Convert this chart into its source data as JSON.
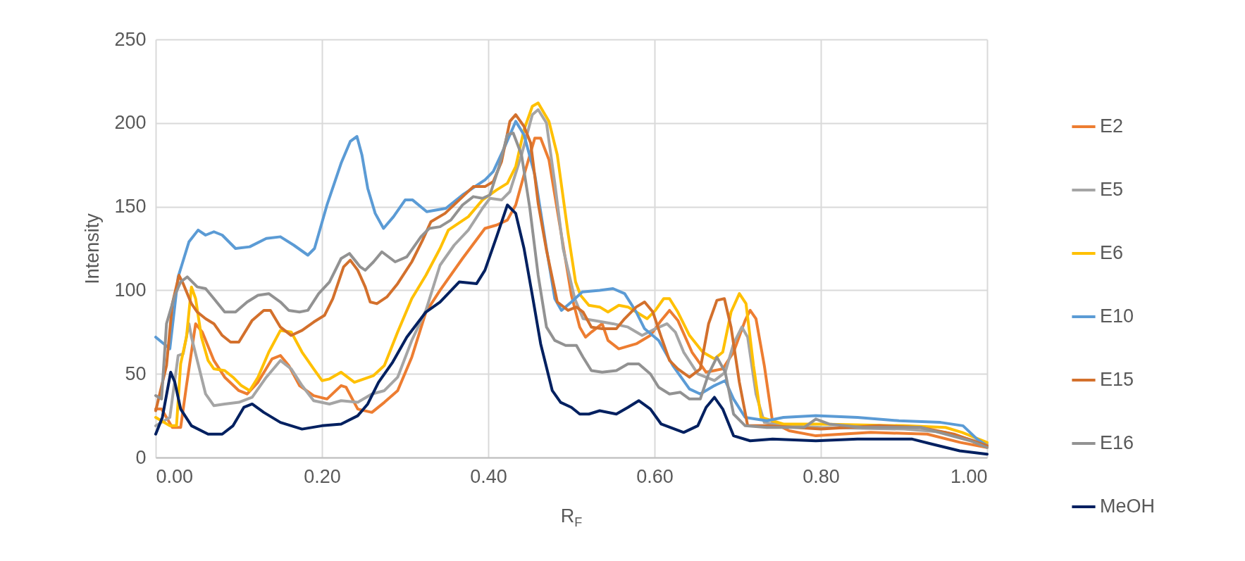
{
  "chart_data": {
    "type": "line",
    "xlabel": "R$_{F}$",
    "ylabel": "Intensity",
    "xlim": [
      0,
      1
    ],
    "ylim": [
      0,
      250
    ],
    "xticks": [
      {
        "value": 0,
        "label": "0.00"
      },
      {
        "value": 0.2,
        "label": "0.20"
      },
      {
        "value": 0.4,
        "label": "0.40"
      },
      {
        "value": 0.6,
        "label": "0.60"
      },
      {
        "value": 0.8,
        "label": "0.80"
      },
      {
        "value": 1,
        "label": "1.00"
      }
    ],
    "yticks": [
      0,
      50,
      100,
      150,
      200,
      250
    ],
    "grid": true,
    "legend": "right",
    "line_style": "solid",
    "marker": "none",
    "series": [
      {
        "name": "E2",
        "color": "#ed7d31",
        "x": [
          0,
          0.007,
          0.02,
          0.03,
          0.037,
          0.048,
          0.056,
          0.07,
          0.083,
          0.1,
          0.11,
          0.123,
          0.14,
          0.15,
          0.16,
          0.173,
          0.19,
          0.206,
          0.223,
          0.229,
          0.243,
          0.26,
          0.275,
          0.291,
          0.308,
          0.325,
          0.342,
          0.369,
          0.396,
          0.41,
          0.423,
          0.433,
          0.443,
          0.456,
          0.463,
          0.473,
          0.486,
          0.5,
          0.51,
          0.517,
          0.524,
          0.537,
          0.544,
          0.557,
          0.578,
          0.595,
          0.608,
          0.618,
          0.628,
          0.645,
          0.662,
          0.682,
          0.695,
          0.709,
          0.715,
          0.722,
          0.732,
          0.742,
          0.762,
          0.794,
          0.86,
          0.928,
          0.968,
          1
        ],
        "values": [
          29,
          29,
          18,
          18,
          43,
          80,
          75,
          58,
          48,
          40,
          38,
          45,
          59,
          61,
          55,
          43,
          37,
          35,
          43,
          42,
          29,
          27,
          33,
          40,
          60,
          87,
          100,
          119,
          137,
          139,
          142,
          151,
          169,
          191,
          191,
          178,
          139,
          97,
          78,
          72,
          75,
          80,
          70,
          65,
          68,
          73,
          82,
          88,
          82,
          63,
          51,
          53,
          63,
          82,
          88,
          83,
          55,
          21,
          16,
          13,
          15,
          14,
          9,
          6
        ]
      },
      {
        "name": "E5",
        "color": "#a5a5a5",
        "x": [
          0,
          0.017,
          0.027,
          0.033,
          0.04,
          0.043,
          0.05,
          0.06,
          0.07,
          0.083,
          0.1,
          0.116,
          0.133,
          0.15,
          0.163,
          0.176,
          0.19,
          0.209,
          0.223,
          0.243,
          0.26,
          0.275,
          0.291,
          0.308,
          0.325,
          0.342,
          0.359,
          0.376,
          0.393,
          0.402,
          0.416,
          0.426,
          0.44,
          0.453,
          0.46,
          0.47,
          0.48,
          0.49,
          0.504,
          0.514,
          0.527,
          0.55,
          0.568,
          0.585,
          0.601,
          0.615,
          0.625,
          0.635,
          0.652,
          0.672,
          0.685,
          0.695,
          0.705,
          0.712,
          0.722,
          0.732,
          0.755,
          0.8,
          0.9,
          0.95,
          0.97,
          1
        ],
        "values": [
          19,
          24,
          61,
          62,
          80,
          72,
          58,
          38,
          31,
          32,
          33,
          36,
          48,
          58,
          53,
          43,
          34,
          32,
          34,
          33,
          38,
          40,
          48,
          70,
          88,
          115,
          127,
          136,
          149,
          155,
          154,
          159,
          181,
          205,
          208,
          200,
          164,
          125,
          95,
          83,
          82,
          80,
          78,
          73,
          77,
          80,
          75,
          63,
          50,
          46,
          51,
          68,
          78,
          72,
          38,
          21,
          19,
          18,
          17,
          15,
          12,
          8
        ]
      },
      {
        "name": "E6",
        "color": "#ffc000",
        "x": [
          0,
          0.017,
          0.025,
          0.03,
          0.037,
          0.043,
          0.048,
          0.055,
          0.063,
          0.07,
          0.083,
          0.093,
          0.103,
          0.113,
          0.123,
          0.136,
          0.15,
          0.163,
          0.176,
          0.19,
          0.2,
          0.209,
          0.223,
          0.239,
          0.262,
          0.275,
          0.291,
          0.308,
          0.325,
          0.342,
          0.352,
          0.376,
          0.393,
          0.41,
          0.423,
          0.433,
          0.443,
          0.453,
          0.46,
          0.473,
          0.483,
          0.496,
          0.505,
          0.511,
          0.521,
          0.534,
          0.544,
          0.557,
          0.568,
          0.578,
          0.591,
          0.601,
          0.611,
          0.618,
          0.628,
          0.642,
          0.658,
          0.672,
          0.682,
          0.692,
          0.702,
          0.71,
          0.719,
          0.728,
          0.755,
          0.8,
          0.9,
          0.95,
          0.97,
          1
        ],
        "values": [
          24,
          19,
          19,
          56,
          72,
          102,
          95,
          72,
          58,
          53,
          52,
          48,
          43,
          40,
          48,
          63,
          76,
          75,
          63,
          53,
          46,
          47,
          51,
          45,
          49,
          55,
          75,
          95,
          109,
          125,
          136,
          144,
          154,
          160,
          164,
          174,
          196,
          210,
          212,
          201,
          181,
          134,
          105,
          97,
          91,
          90,
          87,
          91,
          90,
          87,
          83,
          88,
          95,
          95,
          87,
          73,
          63,
          59,
          63,
          87,
          98,
          92,
          55,
          24,
          20,
          20,
          19,
          18,
          15,
          9
        ]
      },
      {
        "name": "E10",
        "color": "#5b9bd5",
        "x": [
          0,
          0.017,
          0.027,
          0.04,
          0.051,
          0.06,
          0.07,
          0.08,
          0.096,
          0.113,
          0.133,
          0.15,
          0.166,
          0.183,
          0.191,
          0.206,
          0.223,
          0.234,
          0.242,
          0.248,
          0.255,
          0.264,
          0.274,
          0.286,
          0.3,
          0.309,
          0.326,
          0.349,
          0.369,
          0.396,
          0.406,
          0.42,
          0.433,
          0.443,
          0.456,
          0.47,
          0.48,
          0.488,
          0.5,
          0.513,
          0.534,
          0.55,
          0.564,
          0.578,
          0.588,
          0.605,
          0.622,
          0.642,
          0.655,
          0.672,
          0.685,
          0.695,
          0.709,
          0.735,
          0.755,
          0.794,
          0.844,
          0.894,
          0.944,
          0.971,
          0.988,
          1
        ],
        "values": [
          72,
          65,
          108,
          129,
          136,
          133,
          135,
          133,
          125,
          126,
          131,
          132,
          127,
          121,
          125,
          151,
          176,
          189,
          192,
          181,
          161,
          146,
          137,
          144,
          154,
          154,
          147,
          149,
          157,
          166,
          171,
          186,
          201,
          193,
          169,
          125,
          95,
          88,
          93,
          99,
          100,
          101,
          98,
          87,
          77,
          70,
          55,
          41,
          38,
          43,
          46,
          35,
          24,
          22,
          24,
          25,
          24,
          22,
          21,
          19,
          11,
          7
        ]
      },
      {
        "name": "E15",
        "color": "#d3702c",
        "x": [
          0,
          0.013,
          0.02,
          0.028,
          0.033,
          0.043,
          0.05,
          0.06,
          0.07,
          0.08,
          0.09,
          0.1,
          0.116,
          0.13,
          0.138,
          0.15,
          0.163,
          0.176,
          0.19,
          0.203,
          0.213,
          0.226,
          0.234,
          0.243,
          0.252,
          0.258,
          0.266,
          0.278,
          0.291,
          0.308,
          0.321,
          0.331,
          0.348,
          0.365,
          0.382,
          0.396,
          0.406,
          0.416,
          0.426,
          0.433,
          0.443,
          0.451,
          0.46,
          0.47,
          0.483,
          0.496,
          0.506,
          0.514,
          0.524,
          0.537,
          0.554,
          0.564,
          0.578,
          0.588,
          0.598,
          0.608,
          0.618,
          0.628,
          0.642,
          0.655,
          0.665,
          0.675,
          0.684,
          0.692,
          0.702,
          0.712,
          0.735,
          0.8,
          0.87,
          0.92,
          0.96,
          1
        ],
        "values": [
          28,
          55,
          92,
          109,
          104,
          92,
          87,
          83,
          80,
          73,
          69,
          69,
          82,
          88,
          88,
          78,
          73,
          76,
          81,
          85,
          95,
          114,
          118,
          112,
          102,
          93,
          92,
          96,
          104,
          117,
          130,
          141,
          146,
          154,
          162,
          162,
          165,
          177,
          201,
          205,
          198,
          188,
          152,
          124,
          93,
          88,
          90,
          87,
          78,
          77,
          77,
          83,
          90,
          93,
          87,
          72,
          58,
          53,
          48,
          53,
          80,
          94,
          95,
          78,
          45,
          19,
          19,
          17,
          19,
          18,
          14,
          7
        ]
      },
      {
        "name": "E16",
        "color": "#929292",
        "x": [
          0,
          0.007,
          0.013,
          0.023,
          0.03,
          0.038,
          0.05,
          0.06,
          0.07,
          0.083,
          0.096,
          0.11,
          0.123,
          0.136,
          0.15,
          0.16,
          0.173,
          0.183,
          0.196,
          0.209,
          0.223,
          0.233,
          0.246,
          0.252,
          0.262,
          0.272,
          0.288,
          0.302,
          0.319,
          0.329,
          0.342,
          0.355,
          0.369,
          0.382,
          0.393,
          0.402,
          0.413,
          0.423,
          0.43,
          0.44,
          0.45,
          0.46,
          0.47,
          0.48,
          0.493,
          0.506,
          0.514,
          0.524,
          0.537,
          0.554,
          0.568,
          0.581,
          0.595,
          0.605,
          0.618,
          0.631,
          0.642,
          0.655,
          0.665,
          0.675,
          0.685,
          0.695,
          0.709,
          0.735,
          0.78,
          0.794,
          0.81,
          0.85,
          0.92,
          0.95,
          0.98,
          1
        ],
        "values": [
          37,
          35,
          80,
          97,
          105,
          108,
          102,
          101,
          95,
          87,
          87,
          93,
          97,
          98,
          93,
          88,
          87,
          88,
          98,
          105,
          119,
          122,
          114,
          112,
          117,
          123,
          117,
          120,
          132,
          137,
          138,
          142,
          151,
          156,
          155,
          157,
          174,
          193,
          194,
          181,
          149,
          109,
          78,
          70,
          67,
          67,
          60,
          52,
          51,
          52,
          56,
          56,
          50,
          42,
          38,
          39,
          35,
          35,
          50,
          60,
          51,
          26,
          19,
          18,
          18,
          23,
          20,
          18,
          18,
          14,
          10,
          6
        ]
      },
      {
        "name": "MeOH",
        "color": "#002060",
        "x": [
          0,
          0.008,
          0.018,
          0.023,
          0.03,
          0.043,
          0.063,
          0.08,
          0.093,
          0.106,
          0.116,
          0.13,
          0.15,
          0.176,
          0.2,
          0.223,
          0.243,
          0.255,
          0.268,
          0.285,
          0.302,
          0.325,
          0.342,
          0.365,
          0.386,
          0.396,
          0.41,
          0.423,
          0.433,
          0.443,
          0.453,
          0.463,
          0.477,
          0.487,
          0.5,
          0.51,
          0.521,
          0.534,
          0.554,
          0.568,
          0.581,
          0.595,
          0.608,
          0.635,
          0.652,
          0.662,
          0.672,
          0.682,
          0.695,
          0.715,
          0.742,
          0.794,
          0.844,
          0.91,
          0.934,
          0.967,
          1
        ],
        "values": [
          14,
          24,
          51,
          45,
          29,
          19,
          14,
          14,
          19,
          30,
          32,
          27,
          21,
          17,
          19,
          20,
          25,
          32,
          45,
          57,
          72,
          87,
          93,
          105,
          104,
          112,
          132,
          151,
          146,
          125,
          97,
          68,
          40,
          33,
          30,
          26,
          26,
          28,
          26,
          30,
          34,
          29,
          20,
          15,
          19,
          30,
          36,
          29,
          13,
          10,
          11,
          10,
          11,
          11,
          8,
          4,
          2
        ]
      }
    ]
  }
}
